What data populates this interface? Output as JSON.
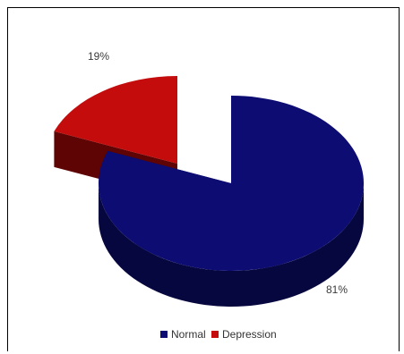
{
  "chart_data": {
    "type": "pie",
    "style": "3d-exploded",
    "categories": [
      "Normal",
      "Depression"
    ],
    "values": [
      81,
      19
    ],
    "data_labels": [
      "81%",
      "19%"
    ],
    "colors": {
      "Normal": {
        "top": "#0c0c72",
        "side": "#07073f"
      },
      "Depression": {
        "top": "#c40c0c",
        "side": "#5e0404"
      }
    },
    "legend": {
      "placement": "bottom",
      "entries": [
        "Normal",
        "Depression"
      ]
    }
  }
}
